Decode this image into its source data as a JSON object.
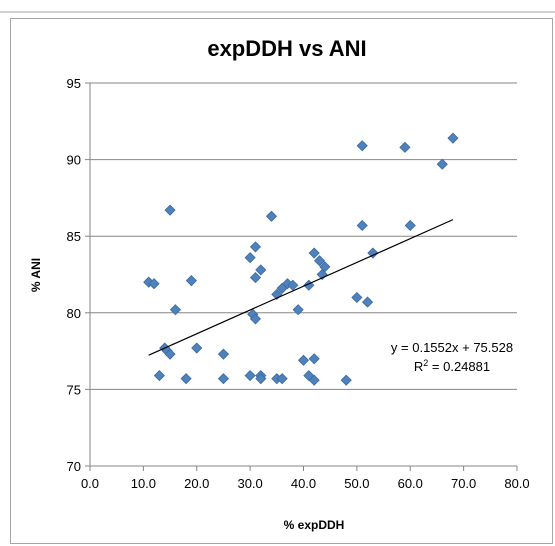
{
  "chart_data": {
    "type": "scatter",
    "title": "expDDH vs ANI",
    "xlabel": "% expDDH",
    "ylabel": "% ANI",
    "xlim": [
      0,
      80
    ],
    "ylim": [
      70,
      95
    ],
    "x_ticks": [
      "0.0",
      "10.0",
      "20.0",
      "30.0",
      "40.0",
      "50.0",
      "60.0",
      "70.0",
      "80.0"
    ],
    "y_ticks": [
      "70",
      "75",
      "80",
      "85",
      "90",
      "95"
    ],
    "grid": "horizontal",
    "marker": "diamond",
    "marker_color": "#4f81bd",
    "series": [
      {
        "points": [
          [
            11,
            82.0
          ],
          [
            12,
            81.9
          ],
          [
            13,
            75.9
          ],
          [
            14,
            77.7
          ],
          [
            14.5,
            77.5
          ],
          [
            15,
            77.3
          ],
          [
            15,
            86.7
          ],
          [
            16,
            80.2
          ],
          [
            18,
            75.7
          ],
          [
            19,
            82.1
          ],
          [
            20,
            77.7
          ],
          [
            25,
            77.3
          ],
          [
            25,
            75.7
          ],
          [
            30,
            83.6
          ],
          [
            30,
            75.9
          ],
          [
            30.5,
            79.9
          ],
          [
            31,
            79.6
          ],
          [
            31,
            84.3
          ],
          [
            31,
            82.3
          ],
          [
            32,
            82.8
          ],
          [
            32,
            75.9
          ],
          [
            32,
            75.7
          ],
          [
            34,
            86.3
          ],
          [
            35,
            81.2
          ],
          [
            35,
            75.7
          ],
          [
            36,
            81.6
          ],
          [
            36,
            75.7
          ],
          [
            37,
            81.9
          ],
          [
            38,
            81.8
          ],
          [
            39,
            80.2
          ],
          [
            40,
            76.9
          ],
          [
            41,
            81.8
          ],
          [
            41,
            75.9
          ],
          [
            42,
            83.9
          ],
          [
            42,
            77.0
          ],
          [
            42,
            75.6
          ],
          [
            43,
            83.4
          ],
          [
            43.5,
            82.5
          ],
          [
            44,
            83.0
          ],
          [
            48,
            75.6
          ],
          [
            50,
            81.0
          ],
          [
            51,
            90.9
          ],
          [
            51,
            85.7
          ],
          [
            52,
            80.7
          ],
          [
            53,
            83.9
          ],
          [
            59,
            90.8
          ],
          [
            60,
            85.7
          ],
          [
            66,
            89.7
          ],
          [
            68,
            91.4
          ]
        ]
      }
    ],
    "trendline": {
      "slope": 0.1552,
      "intercept": 75.528,
      "x_range": [
        11,
        68
      ],
      "color": "#000000",
      "equation": "y = 0.1552x + 75.528",
      "r2_prefix": "R",
      "r2_exp": "2",
      "r2_value": " = 0.24881"
    }
  }
}
